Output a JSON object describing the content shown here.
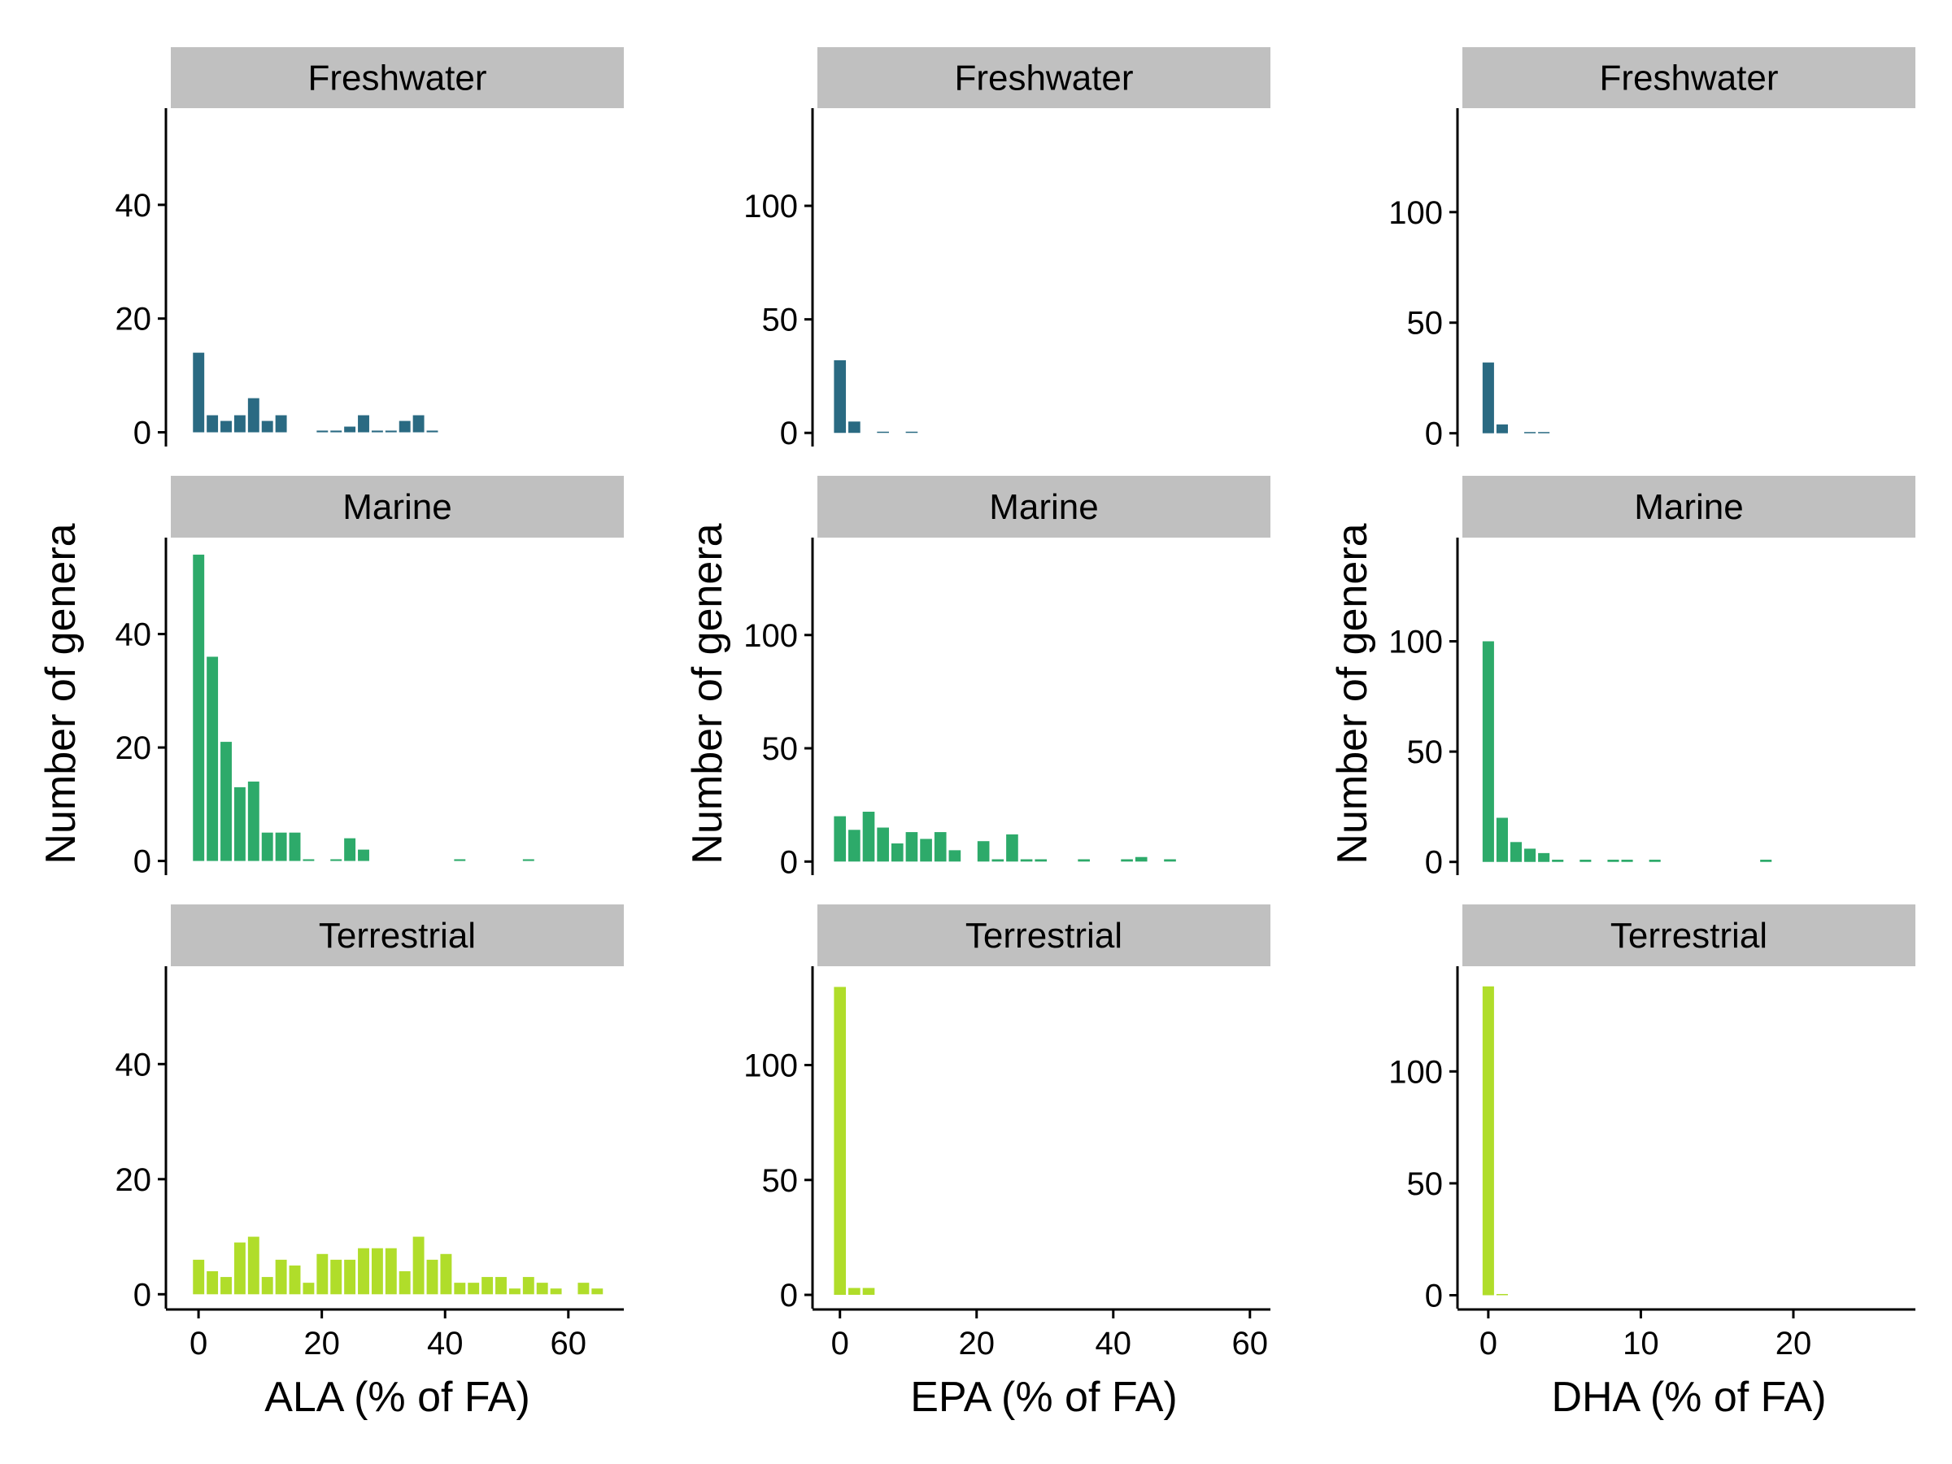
{
  "chart_data": {
    "type": "bar",
    "layout": "faceted histograms, 3 columns x 3 rows",
    "facets": [
      "Freshwater",
      "Marine",
      "Terrestrial"
    ],
    "colors": {
      "Freshwater": "#2a6a82",
      "Marine": "#2daa6a",
      "Terrestrial": "#b0dd2a",
      "strip": "#c0c0c0"
    },
    "grid": false,
    "columns": [
      {
        "xlabel": "ALA (% of FA)",
        "ylabel": "Number of genera",
        "xlim": [
          -4.5,
          69
        ],
        "ylim": [
          -2.5,
          57
        ],
        "xticks": [
          0,
          20,
          40,
          60
        ],
        "yticks": [
          0,
          20,
          40
        ],
        "bin_width": 2.23,
        "bins_start": -1.1,
        "series": [
          {
            "name": "Freshwater",
            "values": [
              14,
              3,
              2,
              3,
              6,
              2,
              3,
              0,
              0,
              0.3,
              0.3,
              1,
              3,
              0.3,
              0.3,
              2,
              3,
              0.3
            ]
          },
          {
            "name": "Marine",
            "values": [
              54,
              36,
              21,
              13,
              14,
              5,
              5,
              5,
              0.3,
              0,
              0.3,
              4,
              2,
              0,
              0,
              0,
              0,
              0,
              0,
              0.3,
              0,
              0,
              0,
              0,
              0.3
            ]
          },
          {
            "name": "Terrestrial",
            "values": [
              6,
              4,
              3,
              9,
              10,
              3,
              6,
              5,
              2,
              7,
              6,
              6,
              8,
              8,
              8,
              4,
              10,
              6,
              7,
              2,
              2,
              3,
              3,
              1,
              3,
              2,
              1,
              0,
              2,
              1
            ]
          }
        ]
      },
      {
        "xlabel": "EPA (% of FA)",
        "ylabel": "Number of genera",
        "xlim": [
          -3.3,
          63
        ],
        "ylim": [
          -6,
          143
        ],
        "xticks": [
          0,
          20,
          40,
          60
        ],
        "yticks": [
          0,
          50,
          100
        ],
        "bin_width": 2.1,
        "bins_start": -1.05,
        "series": [
          {
            "name": "Freshwater",
            "values": [
              32,
              5,
              0,
              0.5,
              0,
              0.5
            ]
          },
          {
            "name": "Marine",
            "values": [
              20,
              14,
              22,
              15,
              8,
              13,
              10,
              13,
              5,
              0,
              9,
              1,
              12,
              1,
              1,
              0,
              0,
              1,
              0,
              0,
              1,
              2,
              0,
              1
            ]
          },
          {
            "name": "Terrestrial",
            "values": [
              134,
              3,
              3
            ]
          }
        ]
      },
      {
        "xlabel": "DHA (% of FA)",
        "ylabel": "Number of genera",
        "xlim": [
          -1.7,
          28
        ],
        "ylim": [
          -6,
          147
        ],
        "xticks": [
          0,
          10,
          20
        ],
        "yticks": [
          0,
          50,
          100
        ],
        "bin_width": 0.91,
        "bins_start": -0.455,
        "series": [
          {
            "name": "Freshwater",
            "values": [
              32,
              4,
              0,
              0.5,
              0.5
            ]
          },
          {
            "name": "Marine",
            "values": [
              100,
              20,
              9,
              6,
              4,
              1,
              0,
              1,
              0,
              1,
              1,
              0,
              1,
              0,
              0,
              0,
              0,
              0,
              0,
              0,
              1
            ]
          },
          {
            "name": "Terrestrial",
            "values": [
              138,
              0.5
            ]
          }
        ]
      }
    ]
  }
}
